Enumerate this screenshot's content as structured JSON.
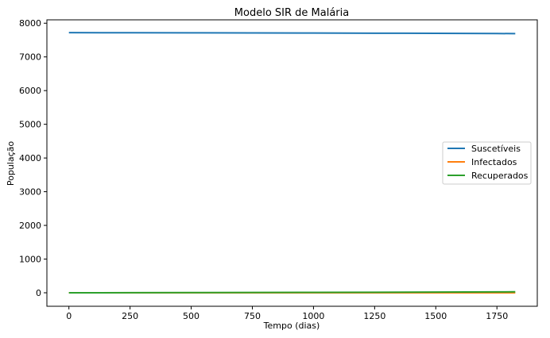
{
  "chart_data": {
    "type": "line",
    "title": "Modelo SIR de Malária",
    "xlabel": "Tempo (dias)",
    "ylabel": "População",
    "xlim": [
      -90,
      1915
    ],
    "ylim": [
      -400,
      8100
    ],
    "xticks": [
      0,
      250,
      500,
      750,
      1000,
      1250,
      1500,
      1750
    ],
    "yticks": [
      0,
      1000,
      2000,
      3000,
      4000,
      5000,
      6000,
      7000,
      8000
    ],
    "grid": false,
    "legend_position": "center-right",
    "series": [
      {
        "name": "Suscetíveis",
        "color": "#1f77b4",
        "x": [
          0,
          250,
          500,
          750,
          1000,
          1250,
          1500,
          1750,
          1825
        ],
        "y": [
          7720,
          7717,
          7714,
          7711,
          7708,
          7704,
          7700,
          7694,
          7690
        ]
      },
      {
        "name": "Infectados",
        "color": "#ff7f0e",
        "x": [
          0,
          250,
          500,
          750,
          1000,
          1250,
          1500,
          1750,
          1825
        ],
        "y": [
          1,
          1,
          1,
          1,
          1,
          1,
          1,
          1,
          1
        ]
      },
      {
        "name": "Recuperados",
        "color": "#2ca02c",
        "x": [
          0,
          250,
          500,
          750,
          1000,
          1250,
          1500,
          1750,
          1825
        ],
        "y": [
          0,
          3,
          6,
          9,
          12,
          16,
          20,
          26,
          30
        ]
      }
    ]
  }
}
